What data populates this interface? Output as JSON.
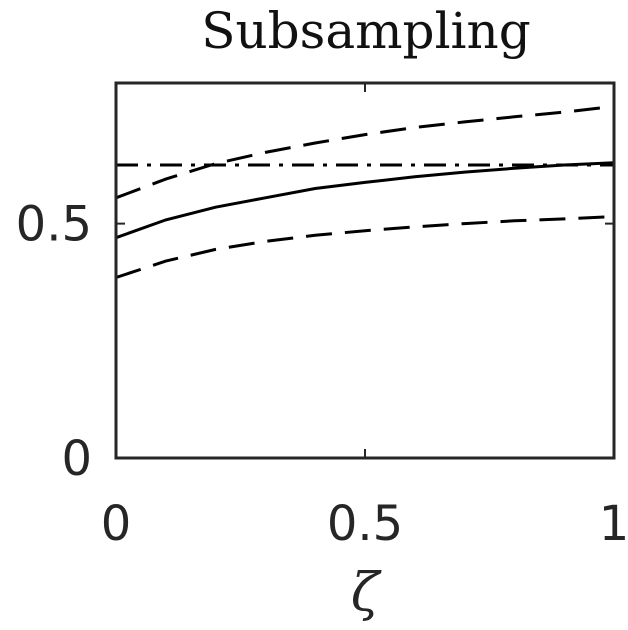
{
  "chart_data": {
    "type": "line",
    "title": "Subsampling",
    "xlabel": "ζ",
    "ylabel": "",
    "xlim": [
      0,
      1
    ],
    "ylim": [
      0,
      0.8
    ],
    "xticks": [
      0,
      0.5,
      1
    ],
    "xtick_labels": [
      "0",
      "0.5",
      "1"
    ],
    "yticks": [
      0,
      0.5
    ],
    "ytick_labels": [
      "0",
      "0.5"
    ],
    "grid": false,
    "series": [
      {
        "style": "solid",
        "color": "#000000",
        "x": [
          0,
          0.1,
          0.2,
          0.3,
          0.4,
          0.5,
          0.6,
          0.7,
          0.8,
          0.9,
          1.0
        ],
        "y": [
          0.47,
          0.508,
          0.535,
          0.555,
          0.575,
          0.588,
          0.6,
          0.61,
          0.618,
          0.625,
          0.63
        ]
      },
      {
        "style": "dashed",
        "color": "#000000",
        "x": [
          0,
          0.1,
          0.2,
          0.3,
          0.4,
          0.5,
          0.6,
          0.7,
          0.8,
          0.9,
          1.0
        ],
        "y": [
          0.555,
          0.595,
          0.628,
          0.652,
          0.672,
          0.69,
          0.705,
          0.717,
          0.728,
          0.738,
          0.75
        ]
      },
      {
        "style": "dashed",
        "color": "#000000",
        "x": [
          0,
          0.1,
          0.2,
          0.3,
          0.4,
          0.5,
          0.6,
          0.7,
          0.8,
          0.9,
          1.0
        ],
        "y": [
          0.385,
          0.42,
          0.445,
          0.462,
          0.475,
          0.485,
          0.493,
          0.5,
          0.506,
          0.51,
          0.515
        ]
      },
      {
        "style": "dashdot",
        "color": "#000000",
        "x": [
          0,
          1
        ],
        "y": [
          0.625,
          0.625
        ]
      }
    ]
  }
}
